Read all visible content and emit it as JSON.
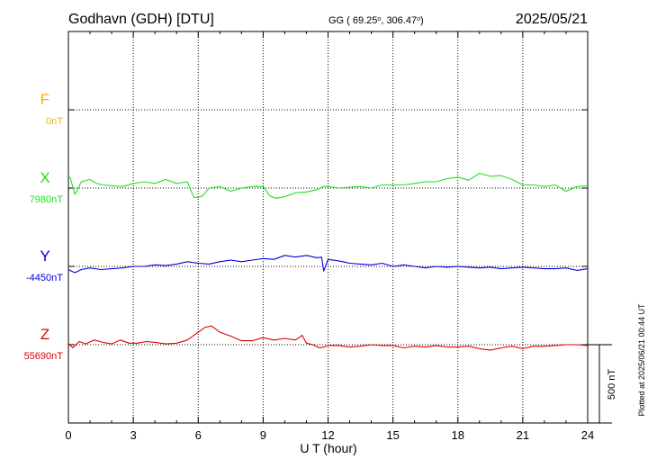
{
  "header": {
    "station": "Godhavn (GDH)  [DTU]",
    "coords_prefix": "GG ( 69.25",
    "coords_mid": ", 306.47",
    "coords_suffix": ")",
    "degree_mark": "o",
    "date": "2025/05/21"
  },
  "footer": {
    "plotted_note": "Plotted at 2025/06/21 00:44 UT",
    "scale_label": "500 nT"
  },
  "colors": {
    "F": "#f5b400",
    "X": "#22e022",
    "Y": "#0000e0",
    "Z": "#e00000",
    "axis": "#000000"
  },
  "chart_data": {
    "type": "line",
    "xlabel": "U T (hour)",
    "xlim": [
      0,
      24
    ],
    "x_ticks": [
      "0",
      "3",
      "6",
      "9",
      "12",
      "15",
      "18",
      "21",
      "24"
    ],
    "scale_nT": 500,
    "series": [
      {
        "name": "F",
        "baseline_label": "0nT",
        "x": [],
        "values": []
      },
      {
        "name": "X",
        "baseline_label": "7980nT",
        "x": [
          0,
          0.1,
          0.3,
          0.6,
          1.0,
          1.3,
          1.6,
          2.0,
          2.5,
          3.0,
          3.5,
          4.0,
          4.5,
          5.0,
          5.5,
          5.8,
          6.0,
          6.2,
          6.5,
          7.0,
          7.5,
          8.0,
          8.5,
          9.0,
          9.3,
          9.6,
          10.0,
          10.5,
          11.0,
          11.5,
          11.8,
          12.0,
          12.5,
          13.0,
          13.5,
          14.0,
          14.5,
          15.0,
          15.5,
          16.0,
          16.5,
          17.0,
          17.5,
          18.0,
          18.5,
          19.0,
          19.5,
          20.0,
          20.5,
          21.0,
          21.5,
          22.0,
          22.5,
          23.0,
          23.5,
          24.0
        ],
        "values": [
          80,
          60,
          -40,
          40,
          55,
          30,
          20,
          15,
          10,
          30,
          40,
          30,
          55,
          30,
          40,
          -60,
          -60,
          -50,
          0,
          10,
          -20,
          0,
          10,
          10,
          -50,
          -65,
          -55,
          -30,
          -25,
          -10,
          10,
          10,
          0,
          5,
          10,
          0,
          20,
          20,
          20,
          30,
          40,
          40,
          60,
          70,
          50,
          95,
          75,
          80,
          55,
          20,
          20,
          10,
          20,
          -20,
          10,
          15
        ]
      },
      {
        "name": "Y",
        "baseline_label": "-4450nT",
        "x": [
          0,
          0.3,
          0.6,
          1.0,
          1.5,
          2.0,
          2.5,
          3.0,
          3.5,
          4.0,
          4.5,
          5.0,
          5.5,
          6.0,
          6.5,
          7.0,
          7.5,
          8.0,
          8.5,
          9.0,
          9.5,
          10.0,
          10.5,
          11.0,
          11.5,
          11.7,
          11.8,
          12.0,
          12.5,
          13.0,
          13.5,
          14.0,
          14.5,
          15.0,
          15.5,
          16.0,
          16.5,
          17.0,
          17.5,
          18.0,
          18.5,
          19.0,
          19.5,
          20.0,
          20.5,
          21.0,
          21.5,
          22.0,
          22.5,
          23.0,
          23.5,
          24.0
        ],
        "values": [
          -20,
          -40,
          -20,
          -10,
          -20,
          -15,
          -10,
          0,
          0,
          10,
          5,
          15,
          30,
          20,
          15,
          30,
          40,
          30,
          40,
          50,
          45,
          70,
          60,
          70,
          55,
          60,
          -30,
          45,
          35,
          20,
          15,
          10,
          20,
          0,
          10,
          0,
          -10,
          0,
          -5,
          0,
          -5,
          -10,
          -5,
          -15,
          -10,
          -5,
          -10,
          -15,
          -15,
          -10,
          -25,
          -15
        ]
      },
      {
        "name": "Z",
        "baseline_label": "55690nT",
        "x": [
          0,
          0.2,
          0.5,
          0.8,
          1.2,
          1.6,
          2.0,
          2.4,
          2.8,
          3.2,
          3.6,
          4.0,
          4.5,
          5.0,
          5.5,
          6.0,
          6.3,
          6.6,
          7.0,
          7.5,
          8.0,
          8.5,
          9.0,
          9.5,
          10.0,
          10.5,
          10.8,
          11.0,
          11.3,
          11.6,
          11.8,
          12.0,
          12.5,
          13.0,
          13.5,
          14.0,
          14.5,
          15.0,
          15.5,
          16.0,
          16.5,
          17.0,
          17.5,
          18.0,
          18.5,
          19.0,
          19.5,
          20.0,
          20.5,
          21.0,
          21.5,
          22.0,
          22.5,
          23.0,
          23.5,
          24.0
        ],
        "values": [
          10,
          -20,
          20,
          5,
          30,
          15,
          5,
          30,
          10,
          10,
          20,
          15,
          5,
          10,
          30,
          80,
          110,
          120,
          80,
          55,
          25,
          25,
          45,
          30,
          40,
          30,
          60,
          10,
          0,
          -20,
          -15,
          -5,
          -5,
          -15,
          -10,
          0,
          -5,
          -5,
          -20,
          -10,
          -15,
          -5,
          -15,
          -15,
          -10,
          -25,
          -35,
          -20,
          -10,
          -25,
          -10,
          -10,
          -5,
          0,
          0,
          -5
        ]
      }
    ]
  }
}
